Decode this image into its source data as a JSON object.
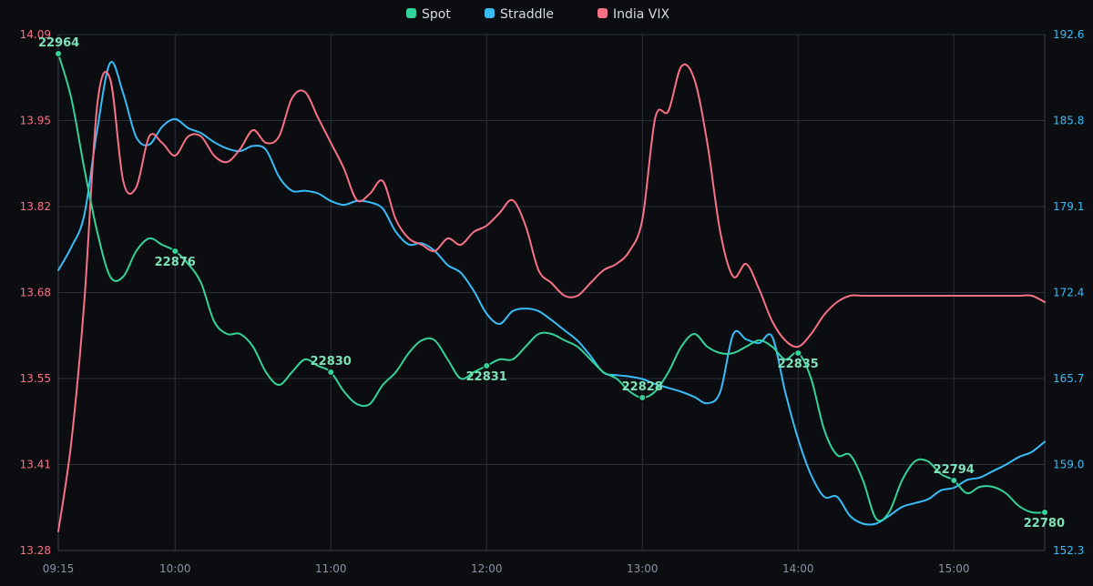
{
  "colors": {
    "background": "#0b0d11",
    "grid": "#2a2f3a",
    "axis": "#3a404c",
    "spot": "#34d399",
    "straddle": "#38bdf8",
    "vix": "#f87186",
    "left_tick": "#f87186",
    "right_tick": "#38bdf8",
    "x_tick": "#8a94a6",
    "spot_label": "#7ee2b8"
  },
  "chart_data": {
    "type": "line",
    "grid": true,
    "legend_position": "top-center",
    "x_tick_labels": [
      "09:15",
      "10:00",
      "11:00",
      "12:00",
      "13:00",
      "14:00",
      "15:00"
    ],
    "x_range": [
      "09:15",
      "15:35"
    ],
    "y_left": {
      "range": [
        13.28,
        14.09
      ],
      "ticks": [
        "13.28",
        "13.41",
        "13.55",
        "13.68",
        "13.82",
        "13.95",
        "14.09"
      ]
    },
    "y_right": {
      "range": [
        152.3,
        192.6
      ],
      "ticks": [
        "152.3",
        "159.0",
        "165.7",
        "172.4",
        "179.1",
        "185.8",
        "192.6"
      ]
    },
    "series": [
      {
        "name": "Spot",
        "axis": "left",
        "color": "#34d399",
        "x": [
          "09:15",
          "09:20",
          "09:25",
          "09:30",
          "09:35",
          "09:40",
          "09:45",
          "09:50",
          "09:55",
          "10:00",
          "10:05",
          "10:10",
          "10:15",
          "10:20",
          "10:25",
          "10:30",
          "10:35",
          "10:40",
          "10:45",
          "10:50",
          "10:55",
          "11:00",
          "11:05",
          "11:10",
          "11:15",
          "11:20",
          "11:25",
          "11:30",
          "11:35",
          "11:40",
          "11:45",
          "11:50",
          "11:55",
          "12:00",
          "12:05",
          "12:10",
          "12:15",
          "12:20",
          "12:25",
          "12:30",
          "12:35",
          "12:40",
          "12:45",
          "12:50",
          "12:55",
          "13:00",
          "13:05",
          "13:10",
          "13:15",
          "13:20",
          "13:25",
          "13:30",
          "13:35",
          "13:40",
          "13:45",
          "13:50",
          "13:55",
          "14:00",
          "14:05",
          "14:10",
          "14:15",
          "14:20",
          "14:25",
          "14:30",
          "14:35",
          "14:40",
          "14:45",
          "14:50",
          "14:55",
          "15:00",
          "15:05",
          "15:10",
          "15:15",
          "15:20",
          "15:25",
          "15:30",
          "15:35"
        ],
        "values": [
          14.06,
          13.99,
          13.88,
          13.78,
          13.71,
          13.71,
          13.75,
          13.77,
          13.76,
          13.75,
          13.73,
          13.7,
          13.64,
          13.62,
          13.62,
          13.6,
          13.56,
          13.54,
          13.56,
          13.58,
          13.57,
          13.56,
          13.53,
          13.51,
          13.51,
          13.54,
          13.56,
          13.59,
          13.61,
          13.61,
          13.58,
          13.55,
          13.56,
          13.57,
          13.58,
          13.58,
          13.6,
          13.62,
          13.62,
          13.61,
          13.6,
          13.58,
          13.56,
          13.55,
          13.53,
          13.52,
          13.53,
          13.56,
          13.6,
          13.62,
          13.6,
          13.59,
          13.59,
          13.6,
          13.61,
          13.6,
          13.58,
          13.59,
          13.55,
          13.47,
          13.43,
          13.43,
          13.39,
          13.33,
          13.34,
          13.39,
          13.42,
          13.42,
          13.4,
          13.39,
          13.37,
          13.38,
          13.38,
          13.37,
          13.35,
          13.34,
          13.34
        ]
      },
      {
        "name": "Straddle",
        "axis": "right",
        "color": "#38bdf8",
        "x": [
          "09:15",
          "09:20",
          "09:25",
          "09:30",
          "09:35",
          "09:40",
          "09:45",
          "09:50",
          "09:55",
          "10:00",
          "10:05",
          "10:10",
          "10:15",
          "10:20",
          "10:25",
          "10:30",
          "10:35",
          "10:40",
          "10:45",
          "10:50",
          "10:55",
          "11:00",
          "11:05",
          "11:10",
          "11:15",
          "11:20",
          "11:25",
          "11:30",
          "11:35",
          "11:40",
          "11:45",
          "11:50",
          "11:55",
          "12:00",
          "12:05",
          "12:10",
          "12:15",
          "12:20",
          "12:25",
          "12:30",
          "12:35",
          "12:40",
          "12:45",
          "12:50",
          "12:55",
          "13:00",
          "13:05",
          "13:10",
          "13:15",
          "13:20",
          "13:25",
          "13:30",
          "13:35",
          "13:40",
          "13:45",
          "13:50",
          "13:55",
          "14:00",
          "14:05",
          "14:10",
          "14:15",
          "14:20",
          "14:25",
          "14:30",
          "14:35",
          "14:40",
          "14:45",
          "14:50",
          "14:55",
          "15:00",
          "15:05",
          "15:10",
          "15:15",
          "15:20",
          "15:25",
          "15:30",
          "15:35"
        ],
        "values": [
          174.2,
          176.0,
          178.5,
          185.2,
          190.4,
          188.0,
          184.6,
          184.0,
          185.4,
          186.0,
          185.3,
          184.9,
          184.2,
          183.7,
          183.5,
          183.9,
          183.6,
          181.5,
          180.4,
          180.4,
          180.2,
          179.6,
          179.3,
          179.6,
          179.5,
          179.0,
          177.2,
          176.2,
          176.3,
          175.7,
          174.6,
          174.0,
          172.6,
          170.8,
          170.0,
          171.0,
          171.2,
          171.0,
          170.3,
          169.5,
          168.7,
          167.5,
          166.2,
          166.0,
          165.9,
          165.7,
          165.3,
          165.0,
          164.7,
          164.3,
          163.8,
          164.7,
          169.2,
          168.8,
          168.5,
          169.0,
          164.7,
          161.0,
          158.2,
          156.5,
          156.5,
          155.0,
          154.4,
          154.4,
          155.0,
          155.7,
          156.0,
          156.3,
          157.0,
          157.2,
          157.8,
          158.0,
          158.5,
          159.0,
          159.6,
          160.0,
          160.8
        ]
      },
      {
        "name": "India VIX",
        "axis": "left",
        "color": "#f87186",
        "x": [
          "09:15",
          "09:20",
          "09:25",
          "09:30",
          "09:35",
          "09:40",
          "09:45",
          "09:50",
          "09:55",
          "10:00",
          "10:05",
          "10:10",
          "10:15",
          "10:20",
          "10:25",
          "10:30",
          "10:35",
          "10:40",
          "10:45",
          "10:50",
          "10:55",
          "11:00",
          "11:05",
          "11:10",
          "11:15",
          "11:20",
          "11:25",
          "11:30",
          "11:35",
          "11:40",
          "11:45",
          "11:50",
          "11:55",
          "12:00",
          "12:05",
          "12:10",
          "12:15",
          "12:20",
          "12:25",
          "12:30",
          "12:35",
          "12:40",
          "12:45",
          "12:50",
          "12:55",
          "13:00",
          "13:05",
          "13:10",
          "13:15",
          "13:20",
          "13:25",
          "13:30",
          "13:35",
          "13:40",
          "13:45",
          "13:50",
          "13:55",
          "14:00",
          "14:05",
          "14:10",
          "14:15",
          "14:20",
          "14:25",
          "14:30",
          "14:35",
          "14:40",
          "14:45",
          "14:50",
          "14:55",
          "15:00",
          "15:05",
          "15:10",
          "15:15",
          "15:20",
          "15:25",
          "15:30",
          "15:35"
        ],
        "values": [
          13.31,
          13.45,
          13.67,
          13.98,
          14.02,
          13.86,
          13.85,
          13.93,
          13.92,
          13.9,
          13.93,
          13.93,
          13.9,
          13.89,
          13.91,
          13.94,
          13.92,
          13.93,
          13.99,
          14.0,
          13.96,
          13.92,
          13.88,
          13.83,
          13.84,
          13.86,
          13.8,
          13.77,
          13.76,
          13.75,
          13.77,
          13.76,
          13.78,
          13.79,
          13.81,
          13.83,
          13.79,
          13.72,
          13.7,
          13.68,
          13.68,
          13.7,
          13.72,
          13.73,
          13.75,
          13.8,
          13.96,
          13.97,
          14.04,
          14.02,
          13.92,
          13.78,
          13.71,
          13.73,
          13.69,
          13.64,
          13.61,
          13.6,
          13.62,
          13.65,
          13.67,
          13.68,
          13.68,
          13.68,
          13.68,
          13.68,
          13.68,
          13.68,
          13.68,
          13.68,
          13.68,
          13.68,
          13.68,
          13.68,
          13.68,
          13.68,
          13.67
        ]
      }
    ],
    "spot_annotations": [
      {
        "time": "09:15",
        "label": "22964",
        "value": 14.06,
        "placement": "above"
      },
      {
        "time": "10:00",
        "label": "22876",
        "value": 13.75,
        "placement": "below"
      },
      {
        "time": "11:00",
        "label": "22830",
        "value": 13.56,
        "placement": "above"
      },
      {
        "time": "12:00",
        "label": "22831",
        "value": 13.57,
        "placement": "below"
      },
      {
        "time": "13:00",
        "label": "22828",
        "value": 13.52,
        "placement": "above"
      },
      {
        "time": "14:00",
        "label": "22835",
        "value": 13.59,
        "placement": "below"
      },
      {
        "time": "15:00",
        "label": "22794",
        "value": 13.39,
        "placement": "above"
      },
      {
        "time": "15:35",
        "label": "22780",
        "value": 13.34,
        "placement": "below"
      }
    ]
  }
}
